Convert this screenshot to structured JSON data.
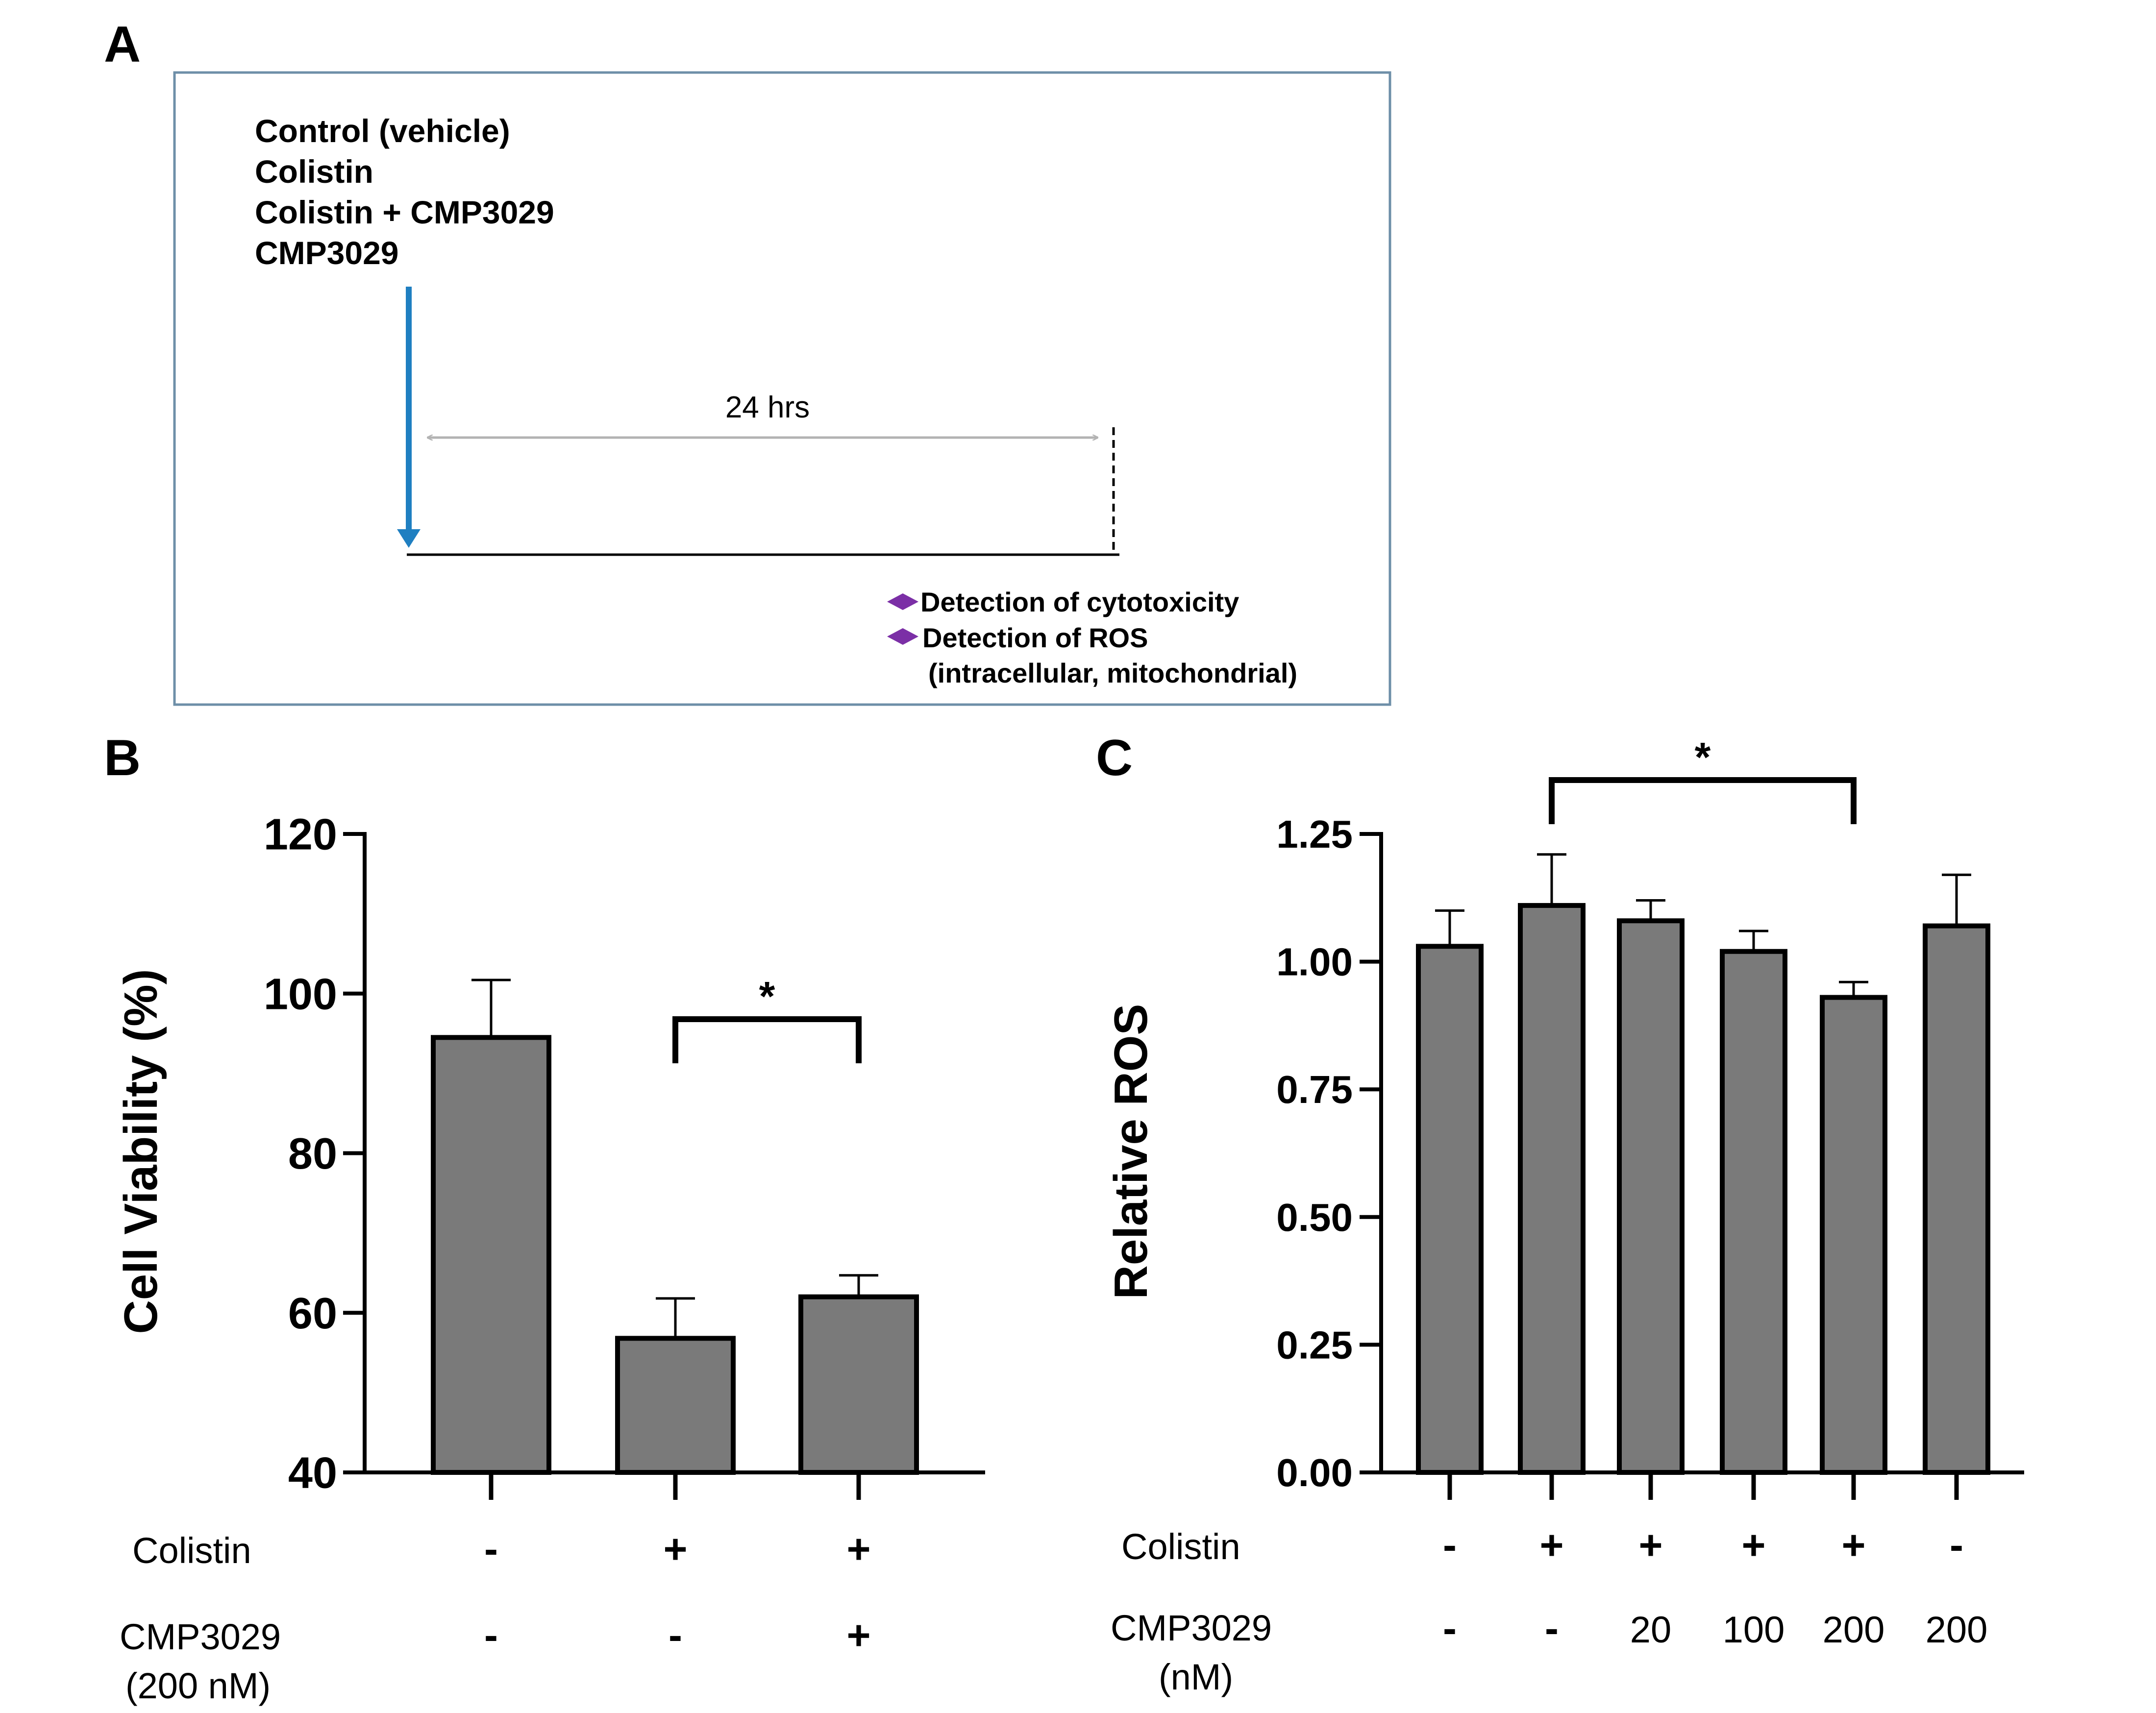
{
  "colors": {
    "bar_fill": "#7a7a7a",
    "axis": "#000000",
    "panel_border": "#6e8fa8",
    "treatment_arrow": "#1f7fc1",
    "bullet": "#7b2fa6",
    "span_arrow": "#b3b3b3"
  },
  "panel_a": {
    "letter": "A",
    "treatments": [
      "Control (vehicle)",
      "Colistin",
      "Colistin + CMP3029",
      "CMP3029"
    ],
    "duration_label": "24 hrs",
    "readouts": [
      "Detection  of cytotoxicity",
      "Detection  of ROS"
    ],
    "readout_note": "(intracellular, mitochondrial)",
    "bullet_icon": "diamond-icon"
  },
  "panel_b": {
    "letter": "B",
    "row_labels": {
      "colistin": "Colistin",
      "cmp_line1": "CMP3029",
      "cmp_line2": "(200 nM)"
    },
    "colistin": [
      "-",
      "+",
      "+"
    ],
    "cmp3029": [
      "-",
      "-",
      "+"
    ],
    "significance": "*"
  },
  "panel_c": {
    "letter": "C",
    "row_labels": {
      "colistin": "Colistin",
      "cmp_line1": "CMP3029",
      "cmp_line2": "(nM)"
    },
    "colistin": [
      "-",
      "+",
      "+",
      "+",
      "+",
      "-"
    ],
    "cmp3029": [
      "-",
      "-",
      "20",
      "100",
      "200",
      "200"
    ],
    "significance": "*"
  },
  "chart_data": [
    {
      "id": "B",
      "type": "bar",
      "title": "",
      "xlabel": "",
      "ylabel": "Cell Viability (%)",
      "categories": [
        "Control",
        "Colistin",
        "Colistin + CMP3029"
      ],
      "values": [
        94.5,
        56.8,
        62.0
      ],
      "errors": [
        7.2,
        5.0,
        2.7
      ],
      "ylim": [
        40,
        120
      ],
      "yticks": [
        40,
        60,
        80,
        100,
        120
      ],
      "ytick_labels": [
        "40",
        "60",
        "80",
        "100",
        "120"
      ],
      "grid": false,
      "significance": [
        {
          "from": 1,
          "to": 2,
          "label": "*"
        }
      ]
    },
    {
      "id": "C",
      "type": "bar",
      "title": "",
      "xlabel": "",
      "ylabel": "Relative ROS",
      "categories": [
        "Control",
        "Colistin",
        "Colistin + CMP3029 20 nM",
        "Colistin + CMP3029 100 nM",
        "Colistin + CMP3029 200 nM",
        "CMP3029 200 nM"
      ],
      "values": [
        1.03,
        1.11,
        1.08,
        1.02,
        0.93,
        1.07
      ],
      "errors": [
        0.07,
        0.1,
        0.04,
        0.04,
        0.03,
        0.1
      ],
      "ylim": [
        0,
        1.25
      ],
      "yticks": [
        0,
        0.25,
        0.5,
        0.75,
        1.0,
        1.25
      ],
      "ytick_labels": [
        "0.00",
        "0.25",
        "0.50",
        "0.75",
        "1.00",
        "1.25"
      ],
      "grid": false,
      "significance": [
        {
          "from": 1,
          "to": 4,
          "label": "*"
        }
      ]
    }
  ]
}
